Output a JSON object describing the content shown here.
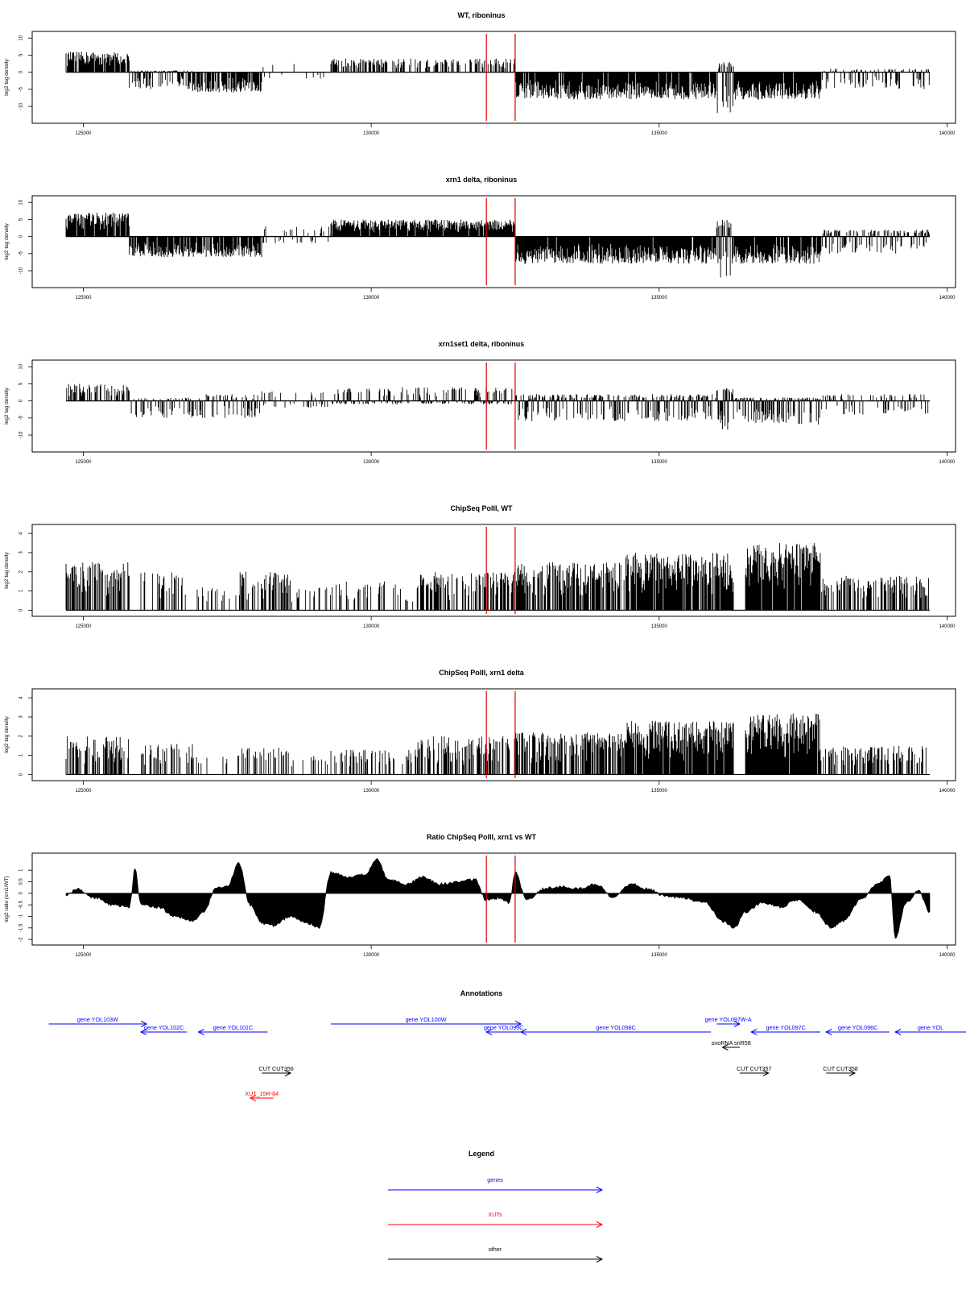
{
  "colors": {
    "signal": "#000000",
    "marker": "#e00000",
    "genes": "#0000ff",
    "xuts": "#ff0000",
    "other": "#000000"
  },
  "chart_data": [
    {
      "type": "bar",
      "title": "WT, riboninus",
      "ylabel": "log2 tag density",
      "xlim": [
        124700,
        139700
      ],
      "ylim": [
        -14,
        11
      ],
      "xticks": [
        125000,
        130000,
        135000,
        140000
      ],
      "yticks": [
        -10,
        -5,
        0,
        5,
        10
      ],
      "markers_x": [
        132000,
        132500
      ],
      "segments": [
        {
          "x": [
            124700,
            125800
          ],
          "max": 6,
          "min": 0,
          "density": 0.9
        },
        {
          "x": [
            125800,
            126900
          ],
          "max": 0.5,
          "min": -5,
          "density": 0.75
        },
        {
          "x": [
            126900,
            128100
          ],
          "max": 0,
          "min": -6,
          "density": 0.8
        },
        {
          "x": [
            128100,
            129300
          ],
          "max": 3,
          "min": -2,
          "density": 0.12
        },
        {
          "x": [
            129300,
            132500
          ],
          "max": 4,
          "min": 0,
          "density": 0.5
        },
        {
          "x": [
            132500,
            136000
          ],
          "max": 0,
          "min": -8,
          "density": 0.95
        },
        {
          "x": [
            136000,
            136300
          ],
          "max": 3,
          "min": -13,
          "density": 0.8
        },
        {
          "x": [
            136300,
            137800
          ],
          "max": 0,
          "min": -8,
          "density": 0.95
        },
        {
          "x": [
            137800,
            139700
          ],
          "max": 1,
          "min": -5,
          "density": 0.5
        }
      ]
    },
    {
      "type": "bar",
      "title": "xrn1 delta, riboninus",
      "ylabel": "log2 tag density",
      "xlim": [
        124700,
        139700
      ],
      "ylim": [
        -14,
        11
      ],
      "xticks": [
        125000,
        130000,
        135000,
        140000
      ],
      "yticks": [
        -10,
        -5,
        0,
        5,
        10
      ],
      "markers_x": [
        132000,
        132500
      ],
      "segments": [
        {
          "x": [
            124700,
            125800
          ],
          "max": 7,
          "min": 0,
          "density": 0.95
        },
        {
          "x": [
            125800,
            126900
          ],
          "max": 0,
          "min": -6,
          "density": 0.85
        },
        {
          "x": [
            126900,
            128100
          ],
          "max": 0,
          "min": -6,
          "density": 0.85
        },
        {
          "x": [
            128100,
            129300
          ],
          "max": 3,
          "min": -2,
          "density": 0.3
        },
        {
          "x": [
            129300,
            132500
          ],
          "max": 5,
          "min": 0,
          "density": 0.95
        },
        {
          "x": [
            132500,
            136000
          ],
          "max": 0,
          "min": -8,
          "density": 0.98
        },
        {
          "x": [
            136000,
            136300
          ],
          "max": 5,
          "min": -12,
          "density": 0.8
        },
        {
          "x": [
            136300,
            137800
          ],
          "max": 0,
          "min": -8,
          "density": 0.95
        },
        {
          "x": [
            137800,
            139700
          ],
          "max": 2,
          "min": -5,
          "density": 0.6
        }
      ]
    },
    {
      "type": "bar",
      "title": "xrn1set1 delta, riboninus",
      "ylabel": "log2 tag density",
      "xlim": [
        124700,
        139700
      ],
      "ylim": [
        -14,
        11
      ],
      "xticks": [
        125000,
        130000,
        135000,
        140000
      ],
      "yticks": [
        -10,
        -5,
        0,
        5,
        10
      ],
      "markers_x": [
        132000,
        132500
      ],
      "segments": [
        {
          "x": [
            124700,
            125800
          ],
          "max": 5,
          "min": 0,
          "density": 0.6
        },
        {
          "x": [
            125800,
            126900
          ],
          "max": 1,
          "min": -5,
          "density": 0.5
        },
        {
          "x": [
            126900,
            128100
          ],
          "max": 2,
          "min": -5,
          "density": 0.5
        },
        {
          "x": [
            128100,
            129300
          ],
          "max": 3,
          "min": -2,
          "density": 0.3
        },
        {
          "x": [
            129300,
            132500
          ],
          "max": 4,
          "min": -1,
          "density": 0.6
        },
        {
          "x": [
            132500,
            136000
          ],
          "max": 2,
          "min": -6,
          "density": 0.7
        },
        {
          "x": [
            136000,
            136300
          ],
          "max": 4,
          "min": -9,
          "density": 0.7
        },
        {
          "x": [
            136300,
            137800
          ],
          "max": 1,
          "min": -7,
          "density": 0.8
        },
        {
          "x": [
            137800,
            139700
          ],
          "max": 2,
          "min": -4,
          "density": 0.4
        }
      ]
    },
    {
      "type": "bar",
      "title": "ChipSeq PolII, WT",
      "ylabel": "log2 tag density",
      "xlim": [
        124700,
        139700
      ],
      "ylim": [
        -0.15,
        4.3
      ],
      "xticks": [
        125000,
        130000,
        135000,
        140000
      ],
      "yticks": [
        0,
        1,
        2,
        3,
        4
      ],
      "markers_x": [
        132000,
        132500
      ],
      "segments": [
        {
          "x": [
            124700,
            125800
          ],
          "max": 2.5,
          "min": 0,
          "density": 0.6
        },
        {
          "x": [
            125800,
            126000
          ],
          "max": 0,
          "min": 0,
          "density": 0
        },
        {
          "x": [
            126000,
            126900
          ],
          "max": 2,
          "min": 0,
          "density": 0.5
        },
        {
          "x": [
            126900,
            127700
          ],
          "max": 1.2,
          "min": 0,
          "density": 0.2
        },
        {
          "x": [
            127700,
            128600
          ],
          "max": 2,
          "min": 0,
          "density": 0.5
        },
        {
          "x": [
            128600,
            129300
          ],
          "max": 1.2,
          "min": 0,
          "density": 0.2
        },
        {
          "x": [
            129300,
            130800
          ],
          "max": 1.5,
          "min": 0,
          "density": 0.3
        },
        {
          "x": [
            130800,
            132500
          ],
          "max": 2,
          "min": 0,
          "density": 0.5
        },
        {
          "x": [
            132500,
            134400
          ],
          "max": 2.5,
          "min": 0,
          "density": 0.7
        },
        {
          "x": [
            134400,
            136300
          ],
          "max": 3,
          "min": 0,
          "density": 0.9
        },
        {
          "x": [
            136300,
            136500
          ],
          "max": 0,
          "min": 0,
          "density": 0
        },
        {
          "x": [
            136500,
            137800
          ],
          "max": 3.5,
          "min": 0,
          "density": 0.95
        },
        {
          "x": [
            137800,
            139700
          ],
          "max": 1.8,
          "min": 0,
          "density": 0.45
        }
      ]
    },
    {
      "type": "bar",
      "title": "ChipSeq PolII, xrn1 delta",
      "ylabel": "log2 tag density",
      "xlim": [
        124700,
        139700
      ],
      "ylim": [
        -0.15,
        4.3
      ],
      "xticks": [
        125000,
        130000,
        135000,
        140000
      ],
      "yticks": [
        0,
        1,
        2,
        3,
        4
      ],
      "markers_x": [
        132000,
        132500
      ],
      "segments": [
        {
          "x": [
            124700,
            125800
          ],
          "max": 2,
          "min": 0,
          "density": 0.5
        },
        {
          "x": [
            125800,
            126000
          ],
          "max": 0,
          "min": 0,
          "density": 0
        },
        {
          "x": [
            126000,
            126900
          ],
          "max": 1.6,
          "min": 0,
          "density": 0.4
        },
        {
          "x": [
            126900,
            127700
          ],
          "max": 1,
          "min": 0,
          "density": 0.2
        },
        {
          "x": [
            127700,
            128600
          ],
          "max": 1.4,
          "min": 0,
          "density": 0.35
        },
        {
          "x": [
            128600,
            129300
          ],
          "max": 1,
          "min": 0,
          "density": 0.2
        },
        {
          "x": [
            129300,
            130800
          ],
          "max": 1.3,
          "min": 0,
          "density": 0.3
        },
        {
          "x": [
            130800,
            132500
          ],
          "max": 2,
          "min": 0,
          "density": 0.55
        },
        {
          "x": [
            132500,
            134400
          ],
          "max": 2.2,
          "min": 0,
          "density": 0.7
        },
        {
          "x": [
            134400,
            136300
          ],
          "max": 2.8,
          "min": 0,
          "density": 0.9
        },
        {
          "x": [
            136300,
            136500
          ],
          "max": 0,
          "min": 0,
          "density": 0
        },
        {
          "x": [
            136500,
            137800
          ],
          "max": 3.2,
          "min": 0,
          "density": 0.95
        },
        {
          "x": [
            137800,
            139700
          ],
          "max": 1.5,
          "min": 0,
          "density": 0.45
        }
      ]
    },
    {
      "type": "area",
      "title": "Ratio ChipSeq PolII, xrn1 vs WT",
      "ylabel": "log2 ratio (xrn1/WT)",
      "xlim": [
        124700,
        139700
      ],
      "ylim": [
        -2.1,
        1.6
      ],
      "xticks": [
        125000,
        130000,
        135000,
        140000
      ],
      "yticks": [
        -2.0,
        -1.5,
        -1.0,
        -0.5,
        0.0,
        0.5,
        1.0
      ],
      "markers_x": [
        132000,
        132500
      ],
      "points": [
        [
          124700,
          -0.1
        ],
        [
          124900,
          0.2
        ],
        [
          125200,
          -0.2
        ],
        [
          125500,
          -0.5
        ],
        [
          125800,
          -0.6
        ],
        [
          125900,
          1.1
        ],
        [
          126000,
          -0.5
        ],
        [
          126300,
          -0.6
        ],
        [
          126600,
          -1.0
        ],
        [
          126900,
          -1.2
        ],
        [
          127100,
          -0.8
        ],
        [
          127300,
          0.2
        ],
        [
          127500,
          0.3
        ],
        [
          127700,
          1.3
        ],
        [
          127900,
          -0.5
        ],
        [
          128100,
          -1.3
        ],
        [
          128300,
          -1.4
        ],
        [
          128600,
          -1.0
        ],
        [
          128900,
          -1.3
        ],
        [
          129100,
          -1.5
        ],
        [
          129300,
          0.9
        ],
        [
          129600,
          0.7
        ],
        [
          129900,
          0.8
        ],
        [
          130100,
          1.5
        ],
        [
          130300,
          0.6
        ],
        [
          130600,
          0.4
        ],
        [
          130900,
          0.7
        ],
        [
          131200,
          0.4
        ],
        [
          131500,
          0.5
        ],
        [
          131800,
          0.6
        ],
        [
          132000,
          -0.3
        ],
        [
          132200,
          -0.2
        ],
        [
          132400,
          -0.4
        ],
        [
          132500,
          0.9
        ],
        [
          132700,
          -0.3
        ],
        [
          133000,
          0.2
        ],
        [
          133300,
          0.3
        ],
        [
          133600,
          0.2
        ],
        [
          133900,
          0.4
        ],
        [
          134200,
          -0.2
        ],
        [
          134500,
          0.4
        ],
        [
          134800,
          0.2
        ],
        [
          135100,
          -0.1
        ],
        [
          135400,
          -0.2
        ],
        [
          135800,
          -0.4
        ],
        [
          136100,
          -1.2
        ],
        [
          136300,
          -1.5
        ],
        [
          136500,
          -0.8
        ],
        [
          136800,
          -0.4
        ],
        [
          137100,
          -0.6
        ],
        [
          137400,
          -0.3
        ],
        [
          137700,
          -0.8
        ],
        [
          138000,
          -1.5
        ],
        [
          138200,
          -1.2
        ],
        [
          138500,
          -0.3
        ],
        [
          138800,
          0.4
        ],
        [
          139000,
          0.8
        ],
        [
          139100,
          -1.9
        ],
        [
          139300,
          -0.4
        ],
        [
          139500,
          0.1
        ],
        [
          139700,
          -0.8
        ]
      ]
    }
  ],
  "annotations": {
    "title": "Annotations",
    "features": [
      {
        "label": "gene YOL103W",
        "x1": 124400,
        "x2": 126100,
        "strand": "+",
        "type": "gene",
        "row": 0
      },
      {
        "label": "gene YOL102C",
        "x1": 126000,
        "x2": 126800,
        "strand": "-",
        "type": "gene",
        "row": 1
      },
      {
        "label": "gene YOL101C",
        "x1": 127000,
        "x2": 128200,
        "strand": "-",
        "type": "gene",
        "row": 1
      },
      {
        "label": "gene YOL100W",
        "x1": 129300,
        "x2": 132600,
        "strand": "+",
        "type": "gene",
        "row": 0
      },
      {
        "label": "gene YOL099C",
        "x1": 132000,
        "x2": 132600,
        "strand": "-",
        "type": "gene",
        "row": 1
      },
      {
        "label": "gene YOL098C",
        "x1": 132600,
        "x2": 135900,
        "strand": "-",
        "type": "gene",
        "row": 1
      },
      {
        "label": "gene YOL097W-A",
        "x1": 136000,
        "x2": 136400,
        "strand": "+",
        "type": "gene",
        "row": 0
      },
      {
        "label": "gene YOL097C",
        "x1": 136600,
        "x2": 137800,
        "strand": "-",
        "type": "gene",
        "row": 1
      },
      {
        "label": "gene YOL096C",
        "x1": 137900,
        "x2": 139000,
        "strand": "-",
        "type": "gene",
        "row": 1
      },
      {
        "label": "gene YOL",
        "x1": 139100,
        "x2": 141000,
        "strand": "-",
        "type": "gene",
        "row": 1
      },
      {
        "label": "snoRNA snR58",
        "x1": 136100,
        "x2": 136400,
        "strand": "-",
        "type": "other",
        "row": 2
      },
      {
        "label": "CUT CUT356",
        "x1": 128100,
        "x2": 128600,
        "strand": "+",
        "type": "other",
        "row": 3
      },
      {
        "label": "CUT CUT357",
        "x1": 136400,
        "x2": 136900,
        "strand": "+",
        "type": "other",
        "row": 3
      },
      {
        "label": "CUT CUT358",
        "x1": 137900,
        "x2": 138400,
        "strand": "+",
        "type": "other",
        "row": 3
      },
      {
        "label": "XUT_15R-84",
        "x1": 127900,
        "x2": 128300,
        "strand": "-",
        "type": "xut",
        "row": 4
      }
    ]
  },
  "legend": {
    "title": "Legend",
    "items": [
      {
        "label": "genes",
        "type": "gene"
      },
      {
        "label": "XUTs",
        "type": "xut"
      },
      {
        "label": "other",
        "type": "other"
      }
    ]
  }
}
